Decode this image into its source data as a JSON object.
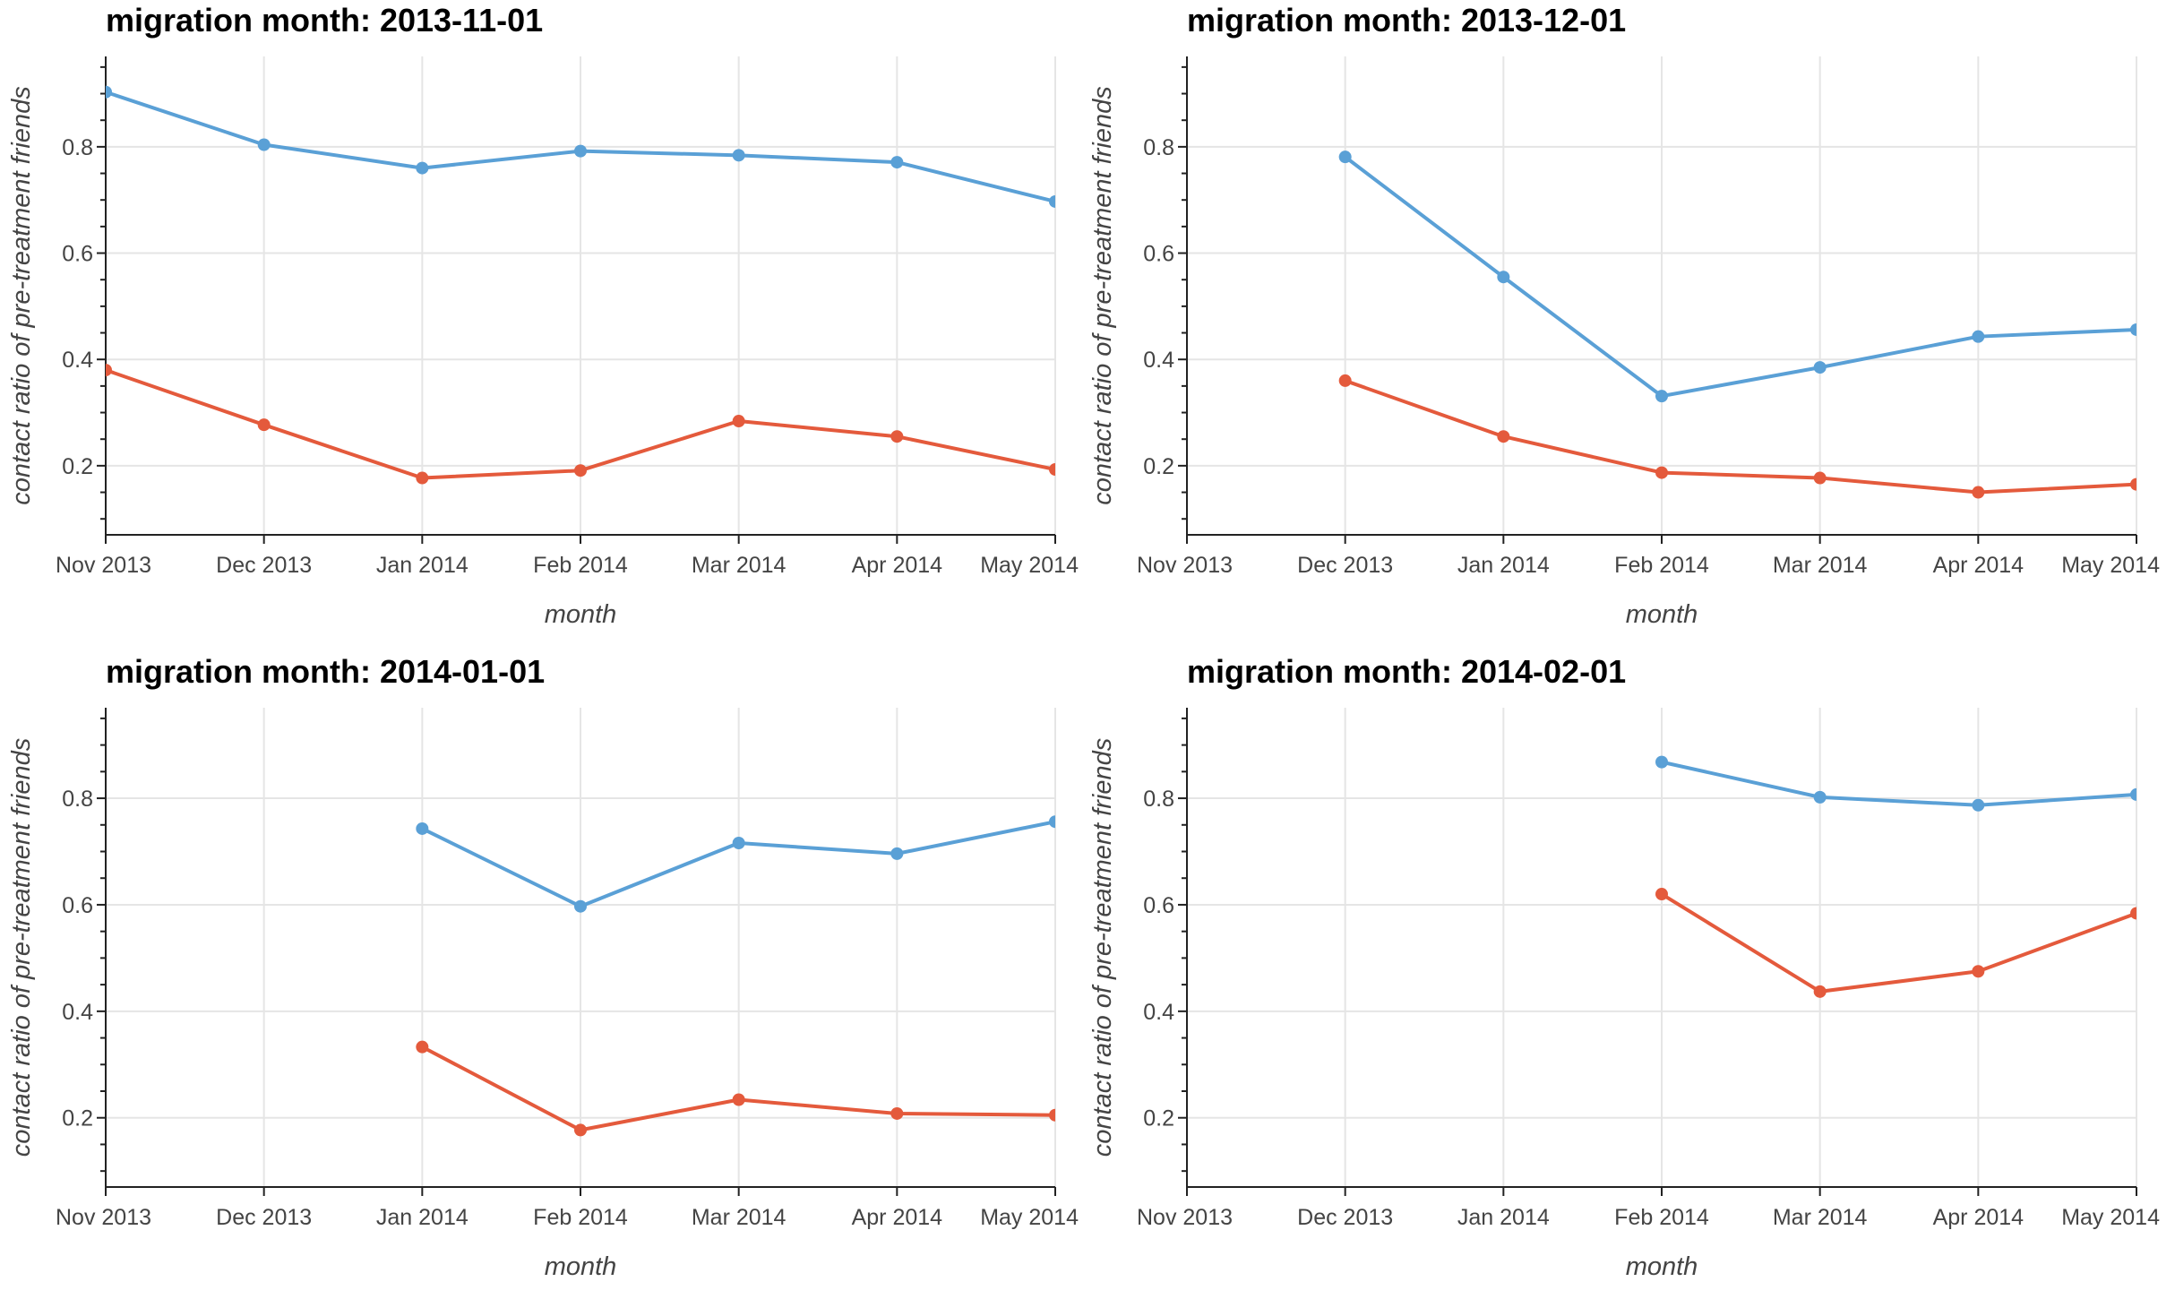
{
  "chart_data": [
    {
      "type": "line",
      "title": "migration month: 2013-11-01",
      "xlabel": "month",
      "ylabel": "contact ratio of pre-treatment friends",
      "x": [
        "Nov 2013",
        "Dec 2013",
        "Jan 2014",
        "Feb 2014",
        "Mar 2014",
        "Apr 2014",
        "May 2014"
      ],
      "ylim": [
        0.07,
        0.97
      ],
      "yticks": [
        0.2,
        0.4,
        0.6,
        0.8
      ],
      "grid": true,
      "series": [
        {
          "color": "#5aa0d6",
          "values": [
            0.903,
            0.804,
            0.76,
            0.792,
            0.784,
            0.771,
            0.697
          ]
        },
        {
          "color": "#e45a3c",
          "values": [
            0.38,
            0.277,
            0.177,
            0.191,
            0.284,
            0.255,
            0.193
          ]
        }
      ]
    },
    {
      "type": "line",
      "title": "migration month: 2013-12-01",
      "xlabel": "month",
      "ylabel": "contact ratio of pre-treatment friends",
      "x": [
        "Nov 2013",
        "Dec 2013",
        "Jan 2014",
        "Feb 2014",
        "Mar 2014",
        "Apr 2014",
        "May 2014"
      ],
      "ylim": [
        0.07,
        0.97
      ],
      "yticks": [
        0.2,
        0.4,
        0.6,
        0.8
      ],
      "grid": true,
      "series": [
        {
          "color": "#5aa0d6",
          "values": [
            null,
            0.781,
            0.555,
            0.331,
            0.385,
            0.443,
            0.456
          ]
        },
        {
          "color": "#e45a3c",
          "values": [
            null,
            0.36,
            0.255,
            0.187,
            0.177,
            0.15,
            0.165
          ]
        }
      ]
    },
    {
      "type": "line",
      "title": "migration month: 2014-01-01",
      "xlabel": "month",
      "ylabel": "contact ratio of pre-treatment friends",
      "x": [
        "Nov 2013",
        "Dec 2013",
        "Jan 2014",
        "Feb 2014",
        "Mar 2014",
        "Apr 2014",
        "May 2014"
      ],
      "ylim": [
        0.07,
        0.97
      ],
      "yticks": [
        0.2,
        0.4,
        0.6,
        0.8
      ],
      "grid": true,
      "series": [
        {
          "color": "#5aa0d6",
          "values": [
            null,
            null,
            0.743,
            0.597,
            0.716,
            0.696,
            0.756
          ]
        },
        {
          "color": "#e45a3c",
          "values": [
            null,
            null,
            0.333,
            0.177,
            0.234,
            0.208,
            0.205
          ]
        }
      ]
    },
    {
      "type": "line",
      "title": "migration month: 2014-02-01",
      "xlabel": "month",
      "ylabel": "contact ratio of pre-treatment friends",
      "x": [
        "Nov 2013",
        "Dec 2013",
        "Jan 2014",
        "Feb 2014",
        "Mar 2014",
        "Apr 2014",
        "May 2014"
      ],
      "ylim": [
        0.07,
        0.97
      ],
      "yticks": [
        0.2,
        0.4,
        0.6,
        0.8
      ],
      "grid": true,
      "series": [
        {
          "color": "#5aa0d6",
          "values": [
            null,
            null,
            null,
            0.868,
            0.802,
            0.787,
            0.807
          ]
        },
        {
          "color": "#e45a3c",
          "values": [
            null,
            null,
            null,
            0.62,
            0.437,
            0.475,
            0.584
          ]
        }
      ]
    }
  ]
}
